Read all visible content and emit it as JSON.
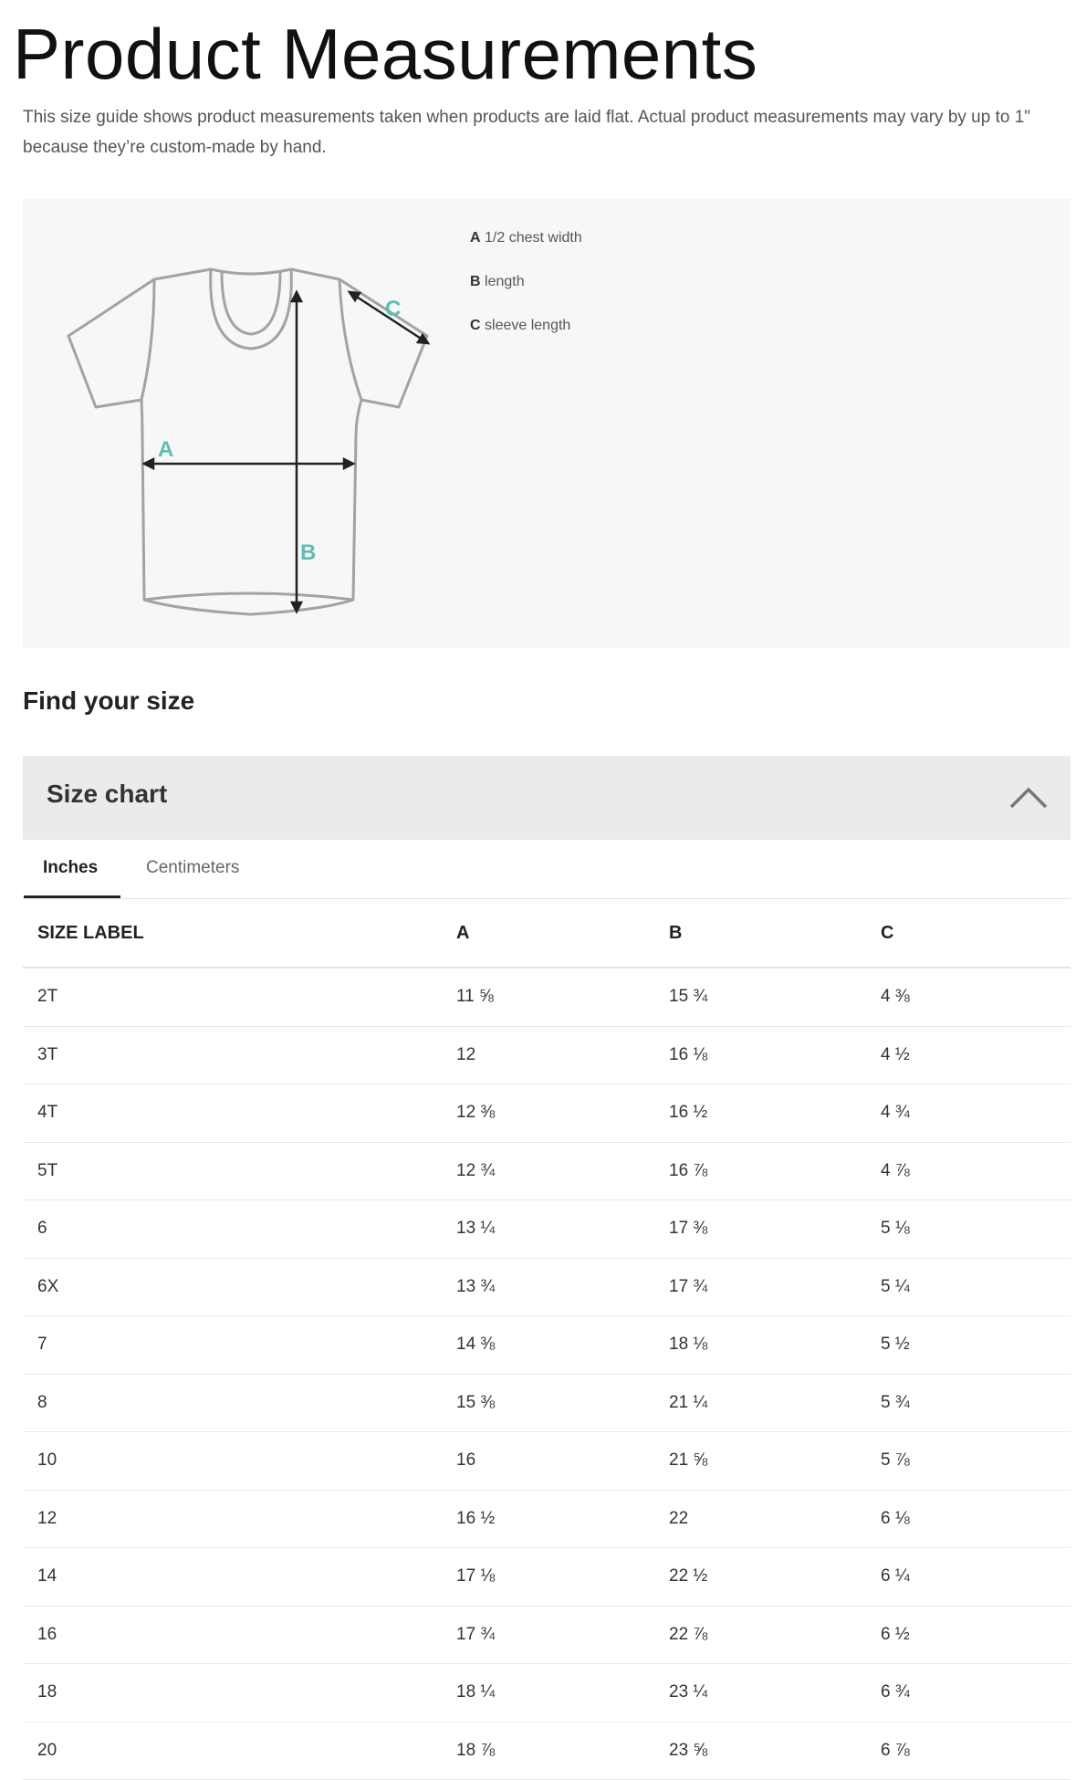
{
  "page": {
    "title": "Product Measurements",
    "description": "This size guide shows product measurements taken when products are laid flat. Actual product measurements may vary by up to 1\" because they’re custom-made by hand."
  },
  "diagram": {
    "accent_color": "#5bbfb5",
    "marker_labels": [
      "A",
      "B",
      "C"
    ],
    "legend": [
      {
        "key": "A",
        "label": "1/2 chest width"
      },
      {
        "key": "B",
        "label": "length"
      },
      {
        "key": "C",
        "label": "sleeve length"
      }
    ]
  },
  "find_size": {
    "heading": "Find your size"
  },
  "size_chart": {
    "title": "Size chart",
    "expanded": true,
    "tabs": [
      {
        "label": "Inches",
        "active": true
      },
      {
        "label": "Centimeters",
        "active": false
      }
    ],
    "columns": [
      "SIZE LABEL",
      "A",
      "B",
      "C"
    ],
    "rows": [
      [
        "2T",
        "11 ⅝",
        "15 ¾",
        "4 ⅜"
      ],
      [
        "3T",
        "12",
        "16 ⅛",
        "4 ½"
      ],
      [
        "4T",
        "12 ⅜",
        "16 ½",
        "4 ¾"
      ],
      [
        "5T",
        "12 ¾",
        "16 ⅞",
        "4 ⅞"
      ],
      [
        "6",
        "13 ¼",
        "17 ⅜",
        "5 ⅛"
      ],
      [
        "6X",
        "13 ¾",
        "17 ¾",
        "5 ¼"
      ],
      [
        "7",
        "14 ⅜",
        "18 ⅛",
        "5 ½"
      ],
      [
        "8",
        "15 ⅜",
        "21 ¼",
        "5 ¾"
      ],
      [
        "10",
        "16",
        "21 ⅝",
        "5 ⅞"
      ],
      [
        "12",
        "16 ½",
        "22",
        "6 ⅛"
      ],
      [
        "14",
        "17 ⅛",
        "22 ½",
        "6 ¼"
      ],
      [
        "16",
        "17 ¾",
        "22 ⅞",
        "6 ½"
      ],
      [
        "18",
        "18 ¼",
        "23 ¼",
        "6 ¾"
      ],
      [
        "20",
        "18 ⅞",
        "23 ⅝",
        "6 ⅞"
      ]
    ]
  }
}
